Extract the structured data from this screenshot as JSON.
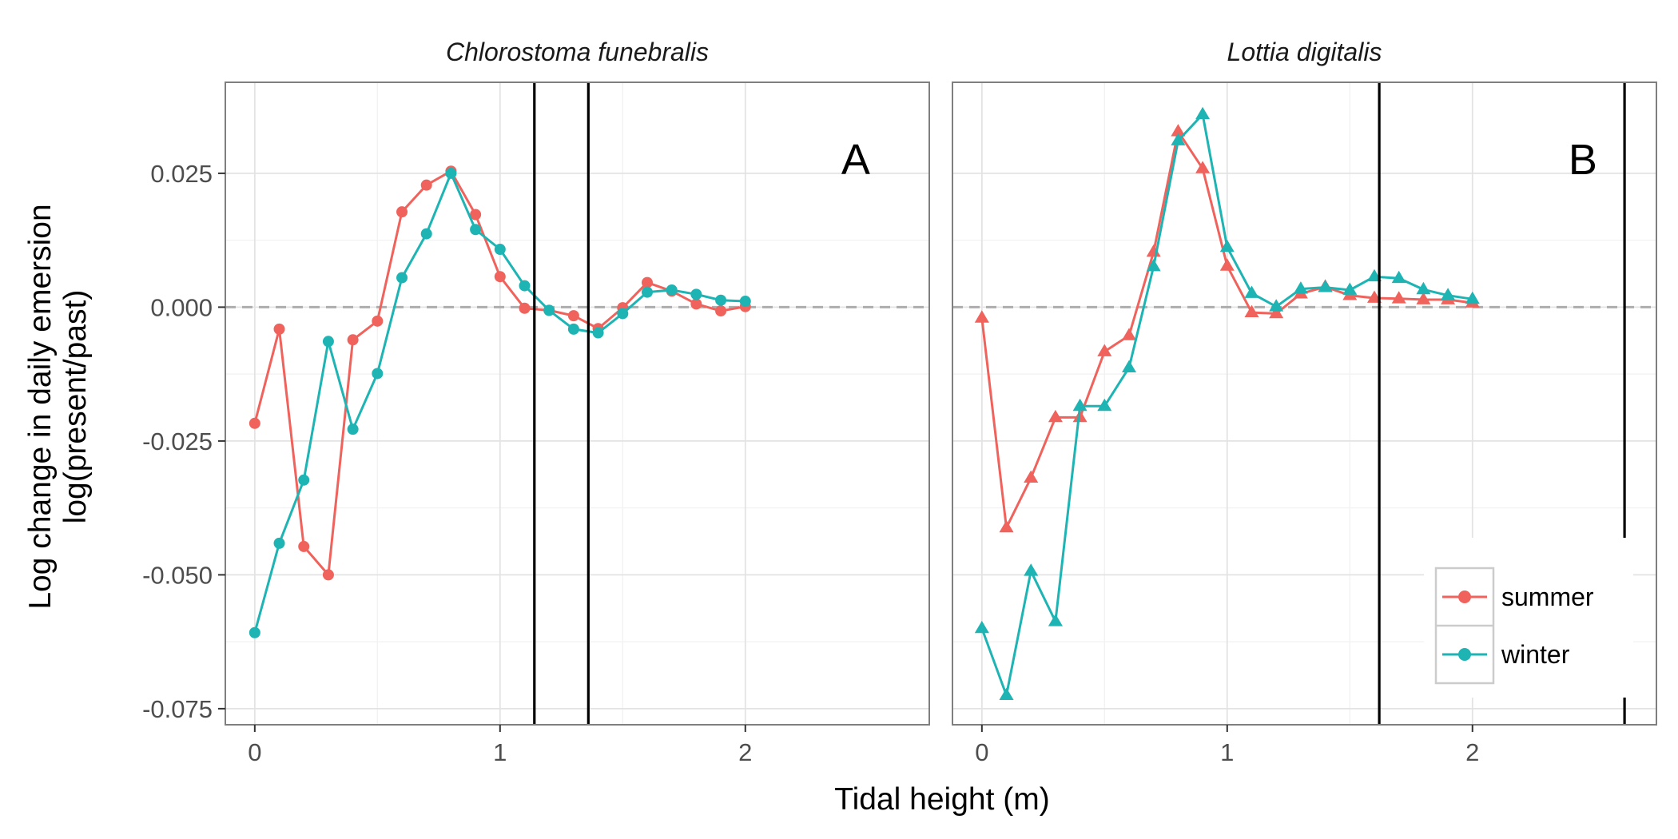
{
  "chart_data": {
    "type": "line",
    "xlabel": "Tidal height (m)",
    "ylabel_lines": [
      "Log change in daily emersion",
      "log(present/past)"
    ],
    "xlim": [
      -0.12,
      2.75
    ],
    "ylim": [
      -0.078,
      0.042
    ],
    "x_ticks": [
      0,
      1,
      2
    ],
    "x_tick_labels": [
      "0",
      "1",
      "2"
    ],
    "y_ticks": [
      0.025,
      0.0,
      -0.025,
      -0.05,
      -0.075
    ],
    "y_tick_labels": [
      "0.025",
      "0.000",
      "-0.025",
      "-0.050",
      "-0.075"
    ],
    "reference_line_y": 0,
    "grid": true,
    "legend_position": "bottom-right",
    "colors": {
      "summer": "#F0625C",
      "winter": "#1EB4B4"
    },
    "legend": [
      {
        "label": "summer",
        "color": "#F0625C"
      },
      {
        "label": "winter",
        "color": "#1EB4B4"
      }
    ],
    "panels": [
      {
        "title": "Chlorostoma funebralis",
        "letter": "A",
        "marker": "circle",
        "vlines": [
          1.14,
          1.36
        ],
        "series": [
          {
            "name": "summer",
            "color": "#F0625C",
            "x": [
              0,
              0.1,
              0.2,
              0.3,
              0.4,
              0.5,
              0.6,
              0.7,
              0.8,
              0.9,
              1.0,
              1.1,
              1.2,
              1.3,
              1.4,
              1.5,
              1.6,
              1.7,
              1.8,
              1.9,
              2.0
            ],
            "values": [
              -0.0217,
              -0.0041,
              -0.0447,
              -0.05,
              -0.0061,
              -0.0026,
              0.0178,
              0.0228,
              0.0254,
              0.0173,
              0.0057,
              -0.0002,
              -0.0006,
              -0.0016,
              -0.004,
              -0.0001,
              0.0046,
              0.003,
              0.0006,
              -0.0007,
              0.0001
            ]
          },
          {
            "name": "winter",
            "color": "#1EB4B4",
            "x": [
              0,
              0.1,
              0.2,
              0.3,
              0.4,
              0.5,
              0.6,
              0.7,
              0.8,
              0.9,
              1.0,
              1.1,
              1.2,
              1.3,
              1.4,
              1.5,
              1.6,
              1.7,
              1.8,
              1.9,
              2.0
            ],
            "values": [
              -0.0608,
              -0.0441,
              -0.0323,
              -0.0064,
              -0.0228,
              -0.0124,
              0.0055,
              0.0137,
              0.025,
              0.0145,
              0.0108,
              0.004,
              -0.0006,
              -0.0041,
              -0.0048,
              -0.0012,
              0.0028,
              0.0032,
              0.0024,
              0.0013,
              0.0011
            ]
          }
        ]
      },
      {
        "title": "Lottia digitalis",
        "letter": "B",
        "marker": "triangle",
        "vlines": [
          1.62,
          2.62
        ],
        "series": [
          {
            "name": "summer",
            "color": "#F0625C",
            "x": [
              0,
              0.1,
              0.2,
              0.3,
              0.4,
              0.5,
              0.6,
              0.7,
              0.8,
              0.9,
              1.0,
              1.1,
              1.2,
              1.3,
              1.4,
              1.5,
              1.6,
              1.7,
              1.8,
              1.9,
              2.0
            ],
            "values": [
              -0.002,
              -0.0412,
              -0.0319,
              -0.0206,
              -0.0206,
              -0.0083,
              -0.0053,
              0.0103,
              0.0328,
              0.0259,
              0.0077,
              -0.001,
              -0.0012,
              0.0025,
              0.0038,
              0.0022,
              0.0017,
              0.0016,
              0.0014,
              0.0014,
              0.0008
            ]
          },
          {
            "name": "winter",
            "color": "#1EB4B4",
            "x": [
              0,
              0.1,
              0.2,
              0.3,
              0.4,
              0.5,
              0.6,
              0.7,
              0.8,
              0.9,
              1.0,
              1.1,
              1.2,
              1.3,
              1.4,
              1.5,
              1.6,
              1.7,
              1.8,
              1.9,
              2.0
            ],
            "values": [
              -0.06,
              -0.0725,
              -0.0493,
              -0.0587,
              -0.0185,
              -0.0185,
              -0.0113,
              0.0076,
              0.0311,
              0.036,
              0.0112,
              0.0026,
              0.0001,
              0.0034,
              0.0037,
              0.0032,
              0.0057,
              0.0054,
              0.0033,
              0.0022,
              0.0015
            ]
          }
        ]
      }
    ]
  }
}
